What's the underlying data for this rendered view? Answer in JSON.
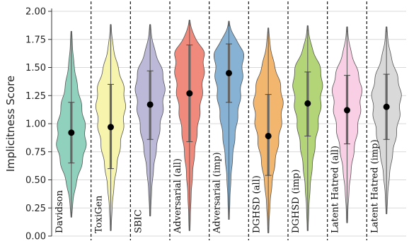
{
  "chart_data": {
    "type": "violin",
    "title": "",
    "xlabel": "",
    "ylabel": "Implicitness Score",
    "ylim": [
      0.0,
      2.0
    ],
    "yticks": [
      "0.00",
      "0.25",
      "0.50",
      "0.75",
      "1.00",
      "1.25",
      "1.50",
      "1.75",
      "2.00"
    ],
    "grid": "horizontal",
    "category_separators": "dashed vertical lines between datasets",
    "categories": [
      {
        "name": "Davidson",
        "color": "#8fd1bd",
        "median": 0.92,
        "q1": 0.65,
        "q3": 1.19,
        "min": 0.17,
        "max": 1.82,
        "mode": 0.85
      },
      {
        "name": "ToxiGen",
        "color": "#f7f4ad",
        "median": 0.97,
        "q1": 0.6,
        "q3": 1.35,
        "min": 0.05,
        "max": 1.88,
        "mode": 1.2
      },
      {
        "name": "SBIC",
        "color": "#bcb9d8",
        "median": 1.17,
        "q1": 0.86,
        "q3": 1.47,
        "min": 0.18,
        "max": 1.88,
        "mode": 1.35
      },
      {
        "name": "Adversarial (all)",
        "color": "#ef8a7c",
        "median": 1.27,
        "q1": 0.84,
        "q3": 1.7,
        "min": 0.05,
        "max": 1.92,
        "mode": 1.6
      },
      {
        "name": "Adversarial (imp)",
        "color": "#87b2d3",
        "median": 1.45,
        "q1": 1.19,
        "q3": 1.71,
        "min": 0.15,
        "max": 1.91,
        "mode": 1.62
      },
      {
        "name": "DGHSD (all)",
        "color": "#f2b66e",
        "median": 0.89,
        "q1": 0.54,
        "q3": 1.26,
        "min": 0.03,
        "max": 1.85,
        "mode": 1.2
      },
      {
        "name": "DGHSD (imp)",
        "color": "#b3d577",
        "median": 1.18,
        "q1": 0.89,
        "q3": 1.46,
        "min": 0.05,
        "max": 1.87,
        "mode": 1.4
      },
      {
        "name": "Latent Hatred (all)",
        "color": "#f8cfe4",
        "median": 1.12,
        "q1": 0.82,
        "q3": 1.43,
        "min": 0.12,
        "max": 1.86,
        "mode": 1.3
      },
      {
        "name": "Latent Hatred (imp)",
        "color": "#d9d9d9",
        "median": 1.15,
        "q1": 0.86,
        "q3": 1.44,
        "min": 0.2,
        "max": 1.86,
        "mode": 1.25
      }
    ]
  }
}
